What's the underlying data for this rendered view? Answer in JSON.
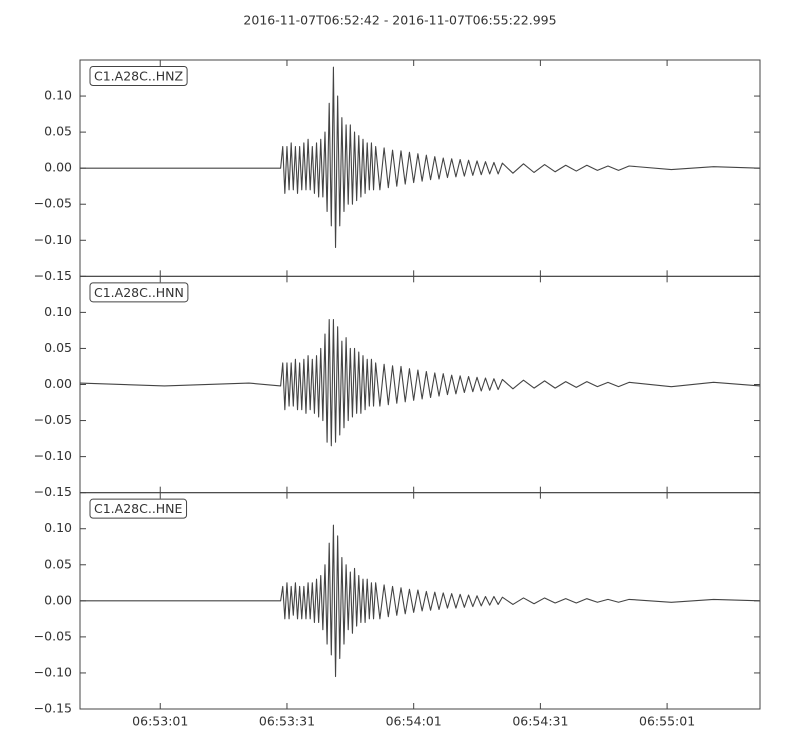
{
  "chart_data": {
    "type": "line",
    "title": "2016-11-07T06:52:42  -  2016-11-07T06:55:22.995",
    "xlim": [
      0,
      160.995
    ],
    "xticks": [
      {
        "value": 19,
        "label": "06:53:01"
      },
      {
        "value": 49,
        "label": "06:53:31"
      },
      {
        "value": 79,
        "label": "06:54:01"
      },
      {
        "value": 109,
        "label": "06:54:31"
      },
      {
        "value": 139,
        "label": "06:55:01"
      }
    ],
    "ylim": [
      -0.15,
      0.15
    ],
    "yticks": [
      {
        "value": -0.15,
        "label": "−0.15"
      },
      {
        "value": -0.1,
        "label": "−0.10"
      },
      {
        "value": -0.05,
        "label": "−0.05"
      },
      {
        "value": 0,
        "label": "0.00"
      },
      {
        "value": 0.05,
        "label": "0.05"
      },
      {
        "value": 0.1,
        "label": "0.10"
      }
    ],
    "x": [
      0,
      20,
      40,
      47.5,
      48,
      48.5,
      49,
      49.5,
      50,
      50.5,
      51,
      51.5,
      52,
      52.5,
      53,
      53.5,
      54,
      54.5,
      55,
      55.5,
      56,
      56.5,
      57,
      57.5,
      58,
      58.5,
      59,
      59.5,
      60,
      60.5,
      61,
      61.5,
      62,
      62.5,
      63,
      63.5,
      64,
      64.5,
      65,
      65.5,
      66,
      66.5,
      67,
      67.5,
      68,
      68.5,
      69,
      69.5,
      70,
      71,
      72,
      73,
      74,
      75,
      76,
      77,
      78,
      79,
      80,
      81,
      82,
      83,
      84,
      85,
      86,
      87,
      88,
      89,
      90,
      91,
      92,
      93,
      94,
      95,
      96,
      97,
      98,
      99,
      100,
      102.5,
      105,
      107.5,
      110,
      112.5,
      115,
      117.5,
      120,
      122.5,
      125,
      127.5,
      130,
      140,
      150,
      160.995
    ],
    "series": [
      {
        "name": "C1.A28C..HNZ",
        "color": "#444444",
        "values": [
          0,
          0,
          0,
          0,
          0.03,
          -0.035,
          0.03,
          -0.03,
          0.035,
          -0.03,
          0.03,
          -0.035,
          0.03,
          -0.03,
          0.035,
          -0.03,
          0.04,
          -0.03,
          0.03,
          -0.035,
          0.035,
          -0.04,
          0.04,
          -0.04,
          0.05,
          -0.06,
          0.09,
          -0.08,
          0.14,
          -0.11,
          0.1,
          -0.08,
          0.07,
          -0.06,
          0.06,
          -0.05,
          0.06,
          -0.05,
          0.05,
          -0.045,
          0.045,
          -0.04,
          0.04,
          -0.035,
          0.035,
          -0.03,
          0.035,
          -0.03,
          0.03,
          -0.03,
          0.028,
          -0.027,
          0.025,
          -0.025,
          0.024,
          -0.022,
          0.022,
          -0.02,
          0.02,
          -0.018,
          0.018,
          -0.016,
          0.016,
          -0.015,
          0.014,
          -0.013,
          0.013,
          -0.012,
          0.012,
          -0.011,
          0.011,
          -0.01,
          0.01,
          -0.009,
          0.009,
          -0.008,
          0.008,
          -0.008,
          0.007,
          -0.007,
          0.006,
          -0.006,
          0.005,
          -0.005,
          0.004,
          -0.004,
          0.004,
          -0.003,
          0.003,
          -0.003,
          0.003,
          -0.002,
          0.002,
          0
        ]
      },
      {
        "name": "C1.A28C..HNN",
        "color": "#444444",
        "values": [
          0.002,
          -0.002,
          0.002,
          -0.002,
          0.03,
          -0.035,
          0.03,
          -0.03,
          0.03,
          -0.03,
          0.035,
          -0.035,
          0.03,
          -0.035,
          0.035,
          -0.04,
          0.04,
          -0.035,
          0.035,
          -0.04,
          0.04,
          -0.045,
          0.05,
          -0.05,
          0.07,
          -0.08,
          0.09,
          -0.085,
          0.09,
          -0.08,
          0.08,
          -0.07,
          0.06,
          -0.06,
          0.065,
          -0.05,
          0.05,
          -0.045,
          0.05,
          -0.04,
          0.045,
          -0.04,
          0.04,
          -0.035,
          0.035,
          -0.03,
          0.035,
          -0.03,
          0.03,
          -0.03,
          0.028,
          -0.028,
          0.026,
          -0.026,
          0.025,
          -0.024,
          0.022,
          -0.022,
          0.02,
          -0.02,
          0.018,
          -0.018,
          0.016,
          -0.016,
          0.015,
          -0.014,
          0.013,
          -0.013,
          0.012,
          -0.011,
          0.011,
          -0.01,
          0.01,
          -0.009,
          0.009,
          -0.008,
          0.008,
          -0.007,
          0.007,
          -0.006,
          0.006,
          -0.005,
          0.005,
          -0.005,
          0.004,
          -0.004,
          0.004,
          -0.003,
          0.003,
          -0.003,
          0.003,
          -0.003,
          0.003,
          -0.002
        ]
      },
      {
        "name": "C1.A28C..HNE",
        "color": "#444444",
        "values": [
          0,
          0,
          0,
          0,
          0.02,
          -0.025,
          0.025,
          -0.025,
          0.02,
          -0.02,
          0.025,
          -0.025,
          0.02,
          -0.025,
          0.02,
          -0.025,
          0.025,
          -0.025,
          0.025,
          -0.03,
          0.03,
          -0.03,
          0.035,
          -0.04,
          0.05,
          -0.06,
          0.08,
          -0.075,
          0.105,
          -0.105,
          0.09,
          -0.08,
          0.06,
          -0.06,
          0.05,
          -0.04,
          0.04,
          -0.045,
          0.045,
          -0.035,
          0.035,
          -0.03,
          0.03,
          -0.03,
          0.03,
          -0.025,
          0.025,
          -0.025,
          0.025,
          -0.025,
          0.022,
          -0.022,
          0.02,
          -0.02,
          0.018,
          -0.018,
          0.016,
          -0.016,
          0.015,
          -0.014,
          0.013,
          -0.013,
          0.012,
          -0.012,
          0.011,
          -0.01,
          0.01,
          -0.01,
          0.009,
          -0.009,
          0.008,
          -0.008,
          0.007,
          -0.007,
          0.006,
          -0.006,
          0.006,
          -0.005,
          0.005,
          -0.005,
          0.004,
          -0.004,
          0.004,
          -0.003,
          0.003,
          -0.003,
          0.003,
          -0.002,
          0.002,
          -0.002,
          0.002,
          -0.002,
          0.002,
          0
        ]
      }
    ]
  }
}
